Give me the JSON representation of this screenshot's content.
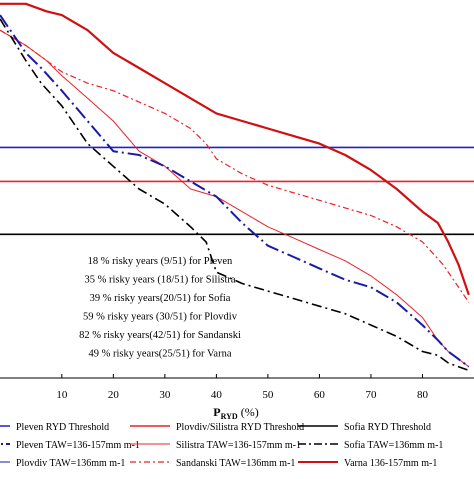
{
  "chart_data": {
    "type": "line",
    "xlabel_main": "P",
    "xlabel_sub": "RYD",
    "xlabel_unit": " (%)",
    "xlim": [
      -2,
      90
    ],
    "ylim": [
      0,
      100
    ],
    "xticks": [
      10,
      20,
      30,
      40,
      50,
      60,
      70,
      80
    ],
    "annotations": [
      "18 % risky years (9/51) for Pleven",
      "35 % risky years (18/51) for Silistra",
      "39 % risky years(20/51) for Sofia",
      "59 % risky years (30/51) for Plovdiv",
      "82 % risky years(42/51) for Sandanski",
      "49 % risky years(25/51) for Varna"
    ],
    "thresholds": [
      {
        "name": "Pleven RYD Threshold",
        "color": "#2020c8",
        "y": 61
      },
      {
        "name": "Plovdiv/Silistra RYD Threshold",
        "color": "#e8232a",
        "y": 52
      },
      {
        "name": "Sofia RYD Threshold",
        "color": "#000000",
        "y": 38
      }
    ],
    "series": [
      {
        "name": "Varna 136-157mm m-1",
        "color": "#d01010",
        "width": 2.2,
        "dash": "",
        "x": [
          -2,
          3,
          7,
          10,
          15,
          20,
          25,
          30,
          35,
          40,
          45,
          50,
          55,
          60,
          65,
          70,
          75,
          80,
          83,
          85,
          87,
          89
        ],
        "y": [
          99,
          99,
          97,
          96,
          92,
          86,
          82,
          78,
          74,
          70,
          68,
          66,
          64,
          62,
          59,
          55,
          50,
          44,
          41,
          36,
          30,
          22
        ]
      },
      {
        "name": "Sandanski TAW=136mm m-1",
        "color": "#e8232a",
        "width": 1.2,
        "dash": "6,3,2,3",
        "x": [
          -2,
          3,
          7,
          10,
          15,
          20,
          25,
          30,
          35,
          38,
          40,
          45,
          50,
          55,
          60,
          65,
          70,
          75,
          80,
          84,
          86,
          88,
          89
        ],
        "y": [
          92,
          88,
          84,
          81,
          78,
          76,
          73,
          70,
          66,
          62,
          58,
          54,
          51,
          49,
          47,
          45,
          43,
          40,
          36,
          30,
          26,
          22,
          20
        ]
      },
      {
        "name": "Silistra TAW=136-157mm m-1",
        "color": "#e8232a",
        "width": 1.0,
        "dash": "",
        "x": [
          -2,
          3,
          7,
          10,
          15,
          20,
          25,
          30,
          35,
          40,
          45,
          50,
          55,
          60,
          65,
          70,
          75,
          80,
          83,
          85,
          87,
          89
        ],
        "y": [
          92,
          88,
          84,
          80,
          74,
          68,
          60,
          56,
          50,
          48,
          44,
          40,
          37,
          34,
          31,
          27,
          22,
          16,
          10,
          7,
          5,
          3
        ]
      },
      {
        "name": "Pleven TAW=136-157mm m-1",
        "color": "#1a1aa8",
        "width": 2.0,
        "dash": "14,4,2,4",
        "x": [
          -2,
          3,
          6,
          10,
          15,
          20,
          25,
          30,
          35,
          40,
          45,
          50,
          55,
          60,
          65,
          70,
          75,
          80,
          83,
          85,
          87,
          89
        ],
        "y": [
          96,
          86,
          82,
          76,
          68,
          60,
          59,
          56,
          52,
          48,
          41,
          35,
          32,
          29,
          26,
          24,
          20,
          14,
          10,
          7,
          5,
          3
        ]
      },
      {
        "name": "Sofia TAW=136mm m-1",
        "color": "#000000",
        "width": 1.6,
        "dash": "10,4,2,4",
        "x": [
          -2,
          3,
          6,
          10,
          15,
          20,
          25,
          30,
          35,
          38,
          40,
          45,
          50,
          55,
          60,
          65,
          70,
          75,
          80,
          83,
          85,
          87,
          89
        ],
        "y": [
          95,
          84,
          78,
          72,
          62,
          56,
          50,
          46,
          40,
          36,
          28,
          25,
          23,
          21,
          19,
          17,
          14,
          11,
          7,
          6,
          4,
          3,
          2
        ]
      }
    ],
    "legend": [
      {
        "label": "Pleven RYD Threshold",
        "color": "#2020c8",
        "dash": "",
        "width": 1.6
      },
      {
        "label": "Plovdiv/Silistra RYD Threshold",
        "color": "#e8232a",
        "dash": "",
        "width": 1.6
      },
      {
        "label": "Sofia RYD Threshold",
        "color": "#000000",
        "dash": "",
        "width": 1.6
      },
      {
        "label": "Pleven TAW=136-157mm m-1",
        "color": "#1a1aa8",
        "dash": "10,3,2,3",
        "width": 2.0
      },
      {
        "label": "Silistra TAW=136-157mm m-1",
        "color": "#e8232a",
        "dash": "",
        "width": 1.0
      },
      {
        "label": "Sofia TAW=136mm m-1",
        "color": "#000000",
        "dash": "8,3,2,3",
        "width": 1.6
      },
      {
        "label": "Plovdiv TAW=136mm m-1",
        "color": "#1a1aa8",
        "dash": "",
        "width": 1.0
      },
      {
        "label": "Sandanski TAW=136mm m-1",
        "color": "#e8232a",
        "dash": "6,3,2,3",
        "width": 1.2
      },
      {
        "label": "Varna 136-157mm m-1",
        "color": "#d01010",
        "dash": "",
        "width": 2.0
      }
    ]
  }
}
